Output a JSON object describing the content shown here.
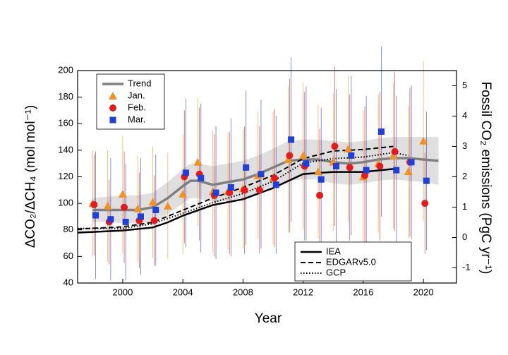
{
  "chart_data": {
    "type": "scatter",
    "x_label": "Year",
    "y_label": "ΔCO₂/ΔCH₄ (mol mol⁻¹)",
    "y2_label": "Fossil CO₂ emissions (PgC yr⁻¹)",
    "xlim": [
      1997,
      2022.2
    ],
    "xticks": [
      2000,
      2004,
      2008,
      2012,
      2016,
      2020
    ],
    "ylim": [
      40,
      200
    ],
    "yticks": [
      40,
      60,
      80,
      100,
      120,
      140,
      160,
      180,
      200
    ],
    "y2lim": [
      -1.5,
      5.5
    ],
    "y2ticks": [
      -1,
      0,
      1,
      2,
      3,
      4,
      5
    ],
    "band": {
      "color": "#d9d9d9",
      "x": [
        1998,
        1999,
        2000,
        2001,
        2002,
        2003,
        2004,
        2004.5,
        2005,
        2006,
        2007,
        2008,
        2009,
        2010,
        2011,
        2012,
        2013,
        2014,
        2015,
        2016,
        2017,
        2018,
        2019,
        2020,
        2021
      ],
      "lower": [
        86,
        86,
        85,
        85,
        86,
        92,
        100,
        104,
        104,
        101,
        102,
        104,
        108,
        113,
        117,
        118,
        118,
        115,
        114,
        115,
        117,
        118,
        117,
        116,
        114
      ],
      "upper": [
        104,
        105,
        106,
        106,
        108,
        116,
        126,
        130,
        130,
        128,
        130,
        132,
        136,
        141,
        147,
        148,
        148,
        147,
        146,
        147,
        149,
        150,
        150,
        150,
        150
      ]
    },
    "series": [
      {
        "name": "Trend",
        "mode": "lines",
        "color": "#808080",
        "width": 3.5,
        "x": [
          1998,
          1999,
          2000,
          2001,
          2002,
          2003,
          2004,
          2004.5,
          2005,
          2006,
          2007,
          2008,
          2009,
          2010,
          2011,
          2012,
          2013,
          2014,
          2015,
          2016,
          2017,
          2018,
          2019,
          2020,
          2021
        ],
        "values": [
          95,
          95,
          95,
          95,
          97,
          104,
          113,
          117,
          117,
          114,
          116,
          118,
          122,
          127,
          132,
          133,
          133,
          131,
          130,
          131,
          133,
          134,
          134,
          133,
          132
        ]
      },
      {
        "name": "Jan.",
        "mode": "markers",
        "marker": "triangle",
        "color": "#f39122",
        "x": [
          1998,
          1999,
          2000,
          2001,
          2002,
          2003,
          2004,
          2005,
          2006,
          2007,
          2008,
          2009,
          2010,
          2011,
          2012,
          2013,
          2014,
          2015,
          2016,
          2017,
          2018,
          2019,
          2020
        ],
        "values": [
          100,
          98,
          107,
          96,
          101,
          98,
          107,
          131,
          109,
          109,
          111,
          121,
          119,
          133,
          136,
          124,
          131,
          141,
          120,
          130,
          136,
          124,
          147
        ],
        "errors": [
          40,
          42,
          44,
          40,
          42,
          40,
          45,
          48,
          46,
          44,
          45,
          48,
          50,
          55,
          55,
          50,
          52,
          55,
          50,
          52,
          55,
          50,
          60
        ]
      },
      {
        "name": "Feb.",
        "mode": "markers",
        "marker": "circle",
        "color": "#e41a1c",
        "x": [
          1998.1,
          1999.1,
          2000.1,
          2001.1,
          2002.1,
          2003.1,
          2004.1,
          2005.1,
          2006.1,
          2007.1,
          2008.1,
          2009.1,
          2010.1,
          2011.1,
          2012.1,
          2013.1,
          2014.1,
          2015.1,
          2016.1,
          2017.1,
          2018.1,
          2019.1,
          2020.1
        ],
        "values": [
          99,
          86,
          97,
          87,
          87,
          null,
          120,
          122,
          106,
          108,
          110,
          110,
          119,
          136,
          128,
          106,
          143,
          127,
          121,
          128,
          139,
          131,
          100
        ],
        "errors": [
          38,
          32,
          42,
          36,
          34,
          null,
          50,
          50,
          46,
          46,
          48,
          48,
          52,
          58,
          56,
          50,
          60,
          55,
          52,
          56,
          60,
          56,
          38
        ]
      },
      {
        "name": "Mar.",
        "mode": "markers",
        "marker": "square",
        "color": "#1f3fd8",
        "x": [
          1998.2,
          1999.2,
          2000.2,
          2001.2,
          2002.2,
          2003.2,
          2004.2,
          2005.2,
          2006.2,
          2007.2,
          2008.2,
          2009.2,
          2010.2,
          2011.2,
          2012.2,
          2013.2,
          2014.2,
          2015.2,
          2016.2,
          2017.2,
          2018.2,
          2019.2,
          2020.2
        ],
        "values": [
          91,
          88,
          86,
          90,
          95,
          null,
          123,
          119,
          108,
          112,
          127,
          122,
          114,
          148,
          130,
          118,
          128,
          136,
          125,
          154,
          125,
          131,
          117
        ],
        "errors": [
          48,
          46,
          44,
          44,
          42,
          null,
          56,
          56,
          50,
          52,
          58,
          56,
          52,
          62,
          58,
          54,
          58,
          60,
          56,
          64,
          56,
          58,
          52
        ]
      },
      {
        "name": "IEA",
        "mode": "lines",
        "axis": "y2",
        "color": "#000000",
        "width": 2.5,
        "dash": "none",
        "x": [
          1997,
          2000,
          2002,
          2003,
          2004,
          2006,
          2008,
          2010,
          2012,
          2014,
          2016,
          2018
        ],
        "values": [
          0.16,
          0.23,
          0.33,
          0.5,
          0.72,
          1.07,
          1.26,
          1.63,
          2.09,
          2.16,
          2.16,
          2.26
        ]
      },
      {
        "name": "EDGARv5.0",
        "mode": "lines",
        "axis": "y2",
        "color": "#000000",
        "width": 2,
        "dash": "7 4",
        "x": [
          1997,
          2000,
          2002,
          2004,
          2006,
          2008,
          2010,
          2012,
          2014,
          2016,
          2018
        ],
        "values": [
          0.28,
          0.35,
          0.5,
          0.9,
          1.3,
          1.65,
          2.05,
          2.6,
          2.85,
          2.9,
          3.0
        ]
      },
      {
        "name": "GCP",
        "mode": "lines",
        "axis": "y2",
        "color": "#000000",
        "width": 2,
        "dash": "1.5 2.5",
        "x": [
          1997,
          2000,
          2002,
          2004,
          2006,
          2008,
          2010,
          2012,
          2014,
          2016,
          2018,
          2019
        ],
        "values": [
          0.3,
          0.3,
          0.45,
          0.8,
          1.15,
          1.45,
          1.85,
          2.45,
          2.6,
          2.65,
          2.8,
          2.7
        ]
      }
    ]
  }
}
